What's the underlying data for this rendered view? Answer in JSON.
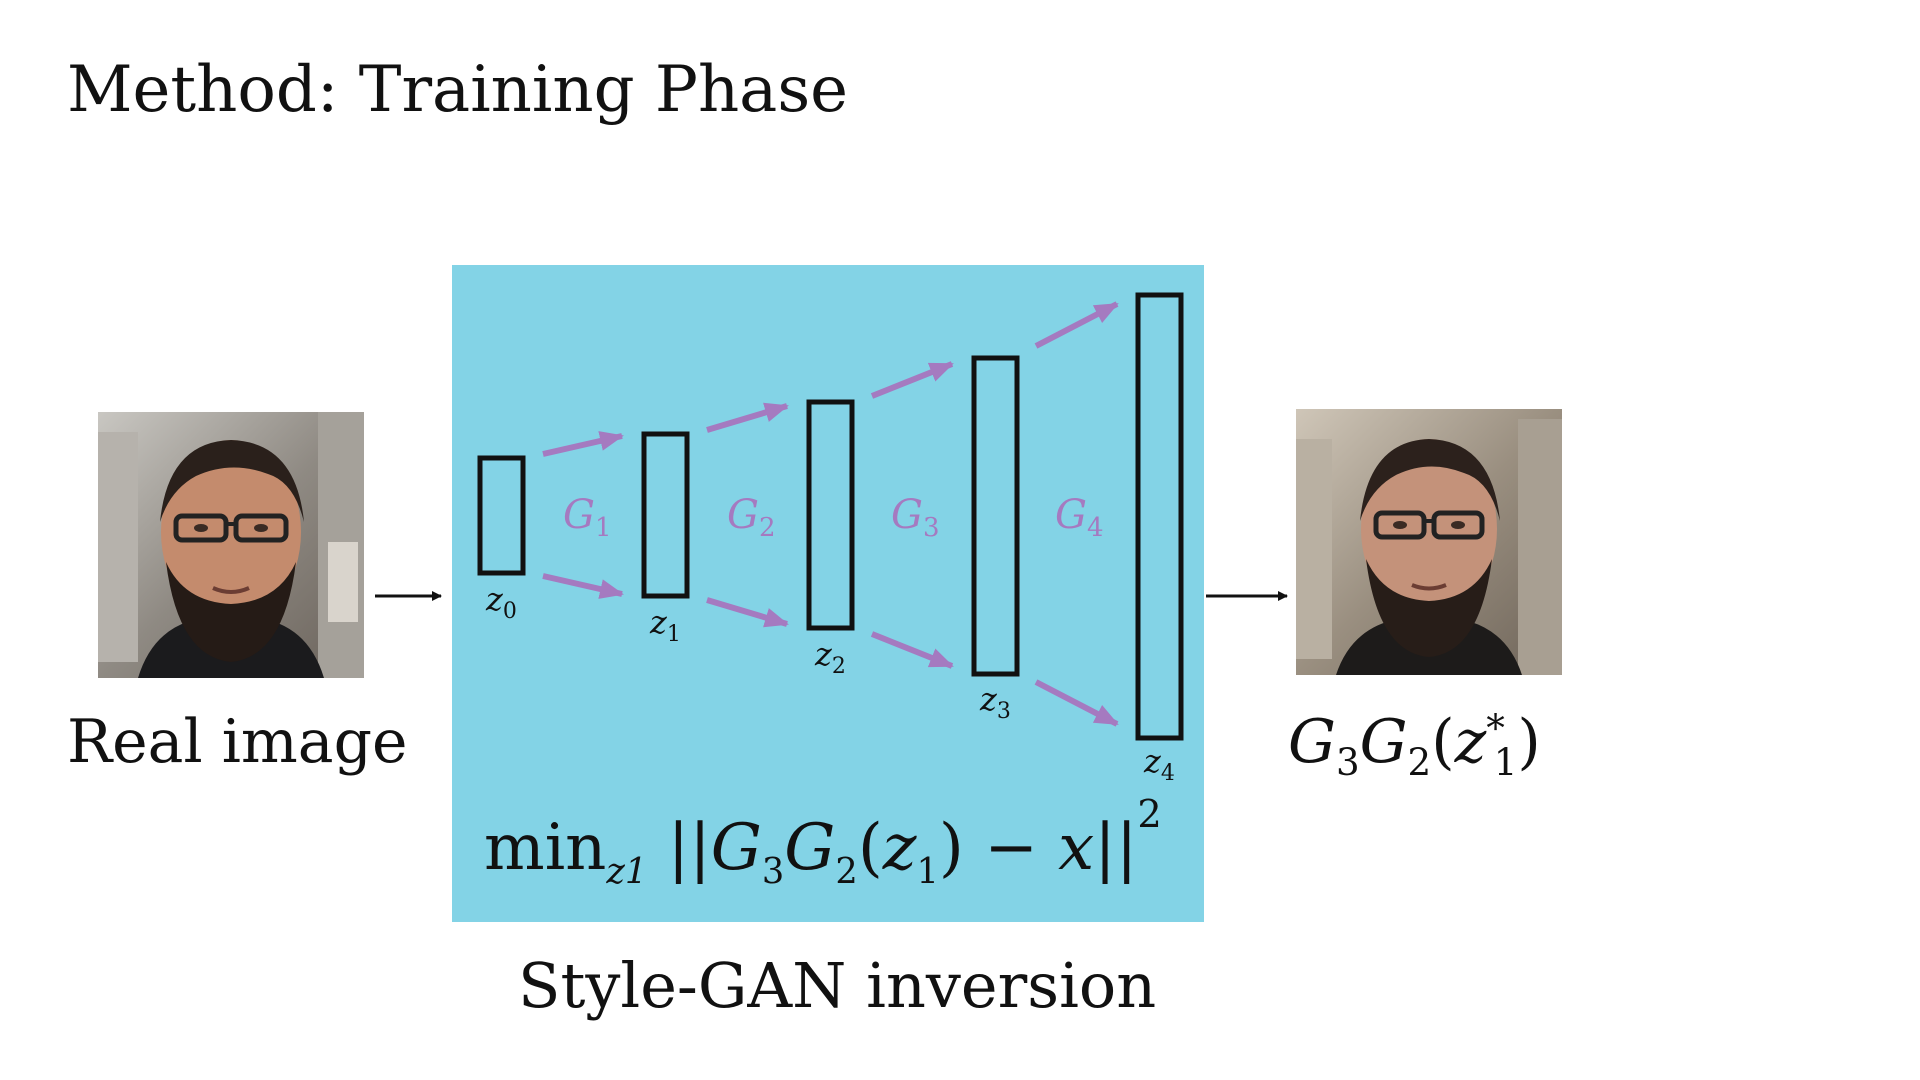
{
  "slide": {
    "title": "Method: Training Phase"
  },
  "input": {
    "caption": "Real image"
  },
  "output": {
    "caption_g3": "G",
    "caption_3": "3",
    "caption_g2": "G",
    "caption_2": "2",
    "caption_open": "(",
    "caption_z": "z",
    "caption_star": "*",
    "caption_1": "1",
    "caption_close": ")"
  },
  "panel": {
    "color": "#83d3e6",
    "caption": "Style-GAN inversion",
    "generator_color": "#a57ac0",
    "latents": [
      {
        "sym": "z",
        "sub": "0"
      },
      {
        "sym": "z",
        "sub": "1"
      },
      {
        "sym": "z",
        "sub": "2"
      },
      {
        "sym": "z",
        "sub": "3"
      },
      {
        "sym": "z",
        "sub": "4"
      }
    ],
    "generators": [
      {
        "sym": "G",
        "sub": "1"
      },
      {
        "sym": "G",
        "sub": "2"
      },
      {
        "sym": "G",
        "sub": "3"
      },
      {
        "sym": "G",
        "sub": "4"
      }
    ],
    "formula": {
      "min": "min",
      "min_sub": "z1",
      "norm_open": "||",
      "g3": "G",
      "g3_sub": "3",
      "g2": "G",
      "g2_sub": "2",
      "arg_open": "(",
      "z": "z",
      "z_sub": "1",
      "arg_close": ")",
      "minus": "−",
      "x": "x",
      "norm_close": "||",
      "power": "2"
    }
  }
}
